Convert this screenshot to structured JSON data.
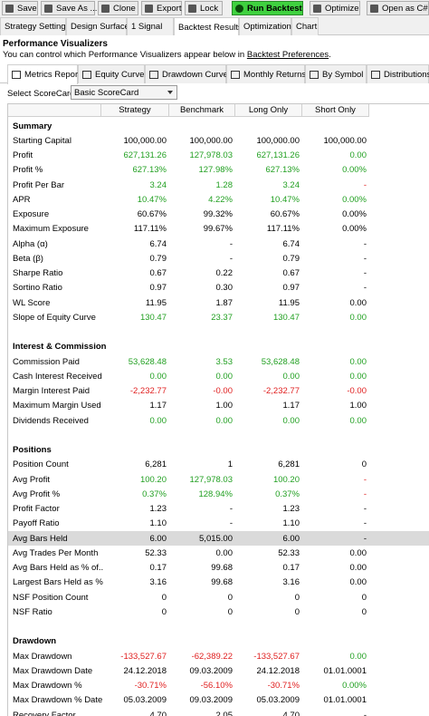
{
  "toolbar": [
    "Save",
    "Save As ...",
    "Clone",
    "Export",
    "Lock",
    "Run Backtest",
    "Optimize",
    "Open as C#"
  ],
  "tabs": [
    "Strategy Settings",
    "Design Surface",
    "1 Signal",
    "Backtest Results",
    "Optimization",
    "Chart"
  ],
  "active_tab": 3,
  "heading": "Performance Visualizers",
  "hint": {
    "text": "You can control which Performance Visualizers appear below in ",
    "link": "Backtest Preferences",
    "end": "."
  },
  "visualizer_tabs": [
    "Metrics Report",
    "Equity Curve",
    "Drawdown Curve",
    "Monthly Returns",
    "By Symbol",
    "Distributions"
  ],
  "active_visualizer": 0,
  "scorecard": {
    "label": "Select ScoreCard:",
    "value": "Basic ScoreCard"
  },
  "columns": [
    "Strategy",
    "Benchmark",
    "Long Only",
    "Short Only"
  ],
  "sections": [
    {
      "title": "Summary",
      "rows": [
        {
          "label": "Starting Capital",
          "values": [
            "100,000.00",
            "100,000.00",
            "100,000.00",
            "100,000.00"
          ]
        },
        {
          "label": "Profit",
          "values": [
            "627,131.26",
            "127,978.03",
            "627,131.26",
            "0.00"
          ],
          "colors": [
            "#22a022",
            "#22a022",
            "#22a022",
            "#22a022"
          ]
        },
        {
          "label": "Profit %",
          "values": [
            "627.13%",
            "127.98%",
            "627.13%",
            "0.00%"
          ],
          "colors": [
            "#22a022",
            "#22a022",
            "#22a022",
            "#22a022"
          ]
        },
        {
          "label": "Profit Per Bar",
          "values": [
            "3.24",
            "1.28",
            "3.24",
            "-"
          ],
          "colors": [
            "#22a022",
            "#22a022",
            "#22a022",
            "#e02020"
          ]
        },
        {
          "label": "APR",
          "values": [
            "10.47%",
            "4.22%",
            "10.47%",
            "0.00%"
          ],
          "colors": [
            "#22a022",
            "#22a022",
            "#22a022",
            "#22a022"
          ]
        },
        {
          "label": "Exposure",
          "values": [
            "60.67%",
            "99.32%",
            "60.67%",
            "0.00%"
          ]
        },
        {
          "label": "Maximum Exposure",
          "values": [
            "117.11%",
            "99.67%",
            "117.11%",
            "0.00%"
          ]
        },
        {
          "label": "Alpha (α)",
          "values": [
            "6.74",
            "-",
            "6.74",
            "-"
          ]
        },
        {
          "label": "Beta (β)",
          "values": [
            "0.79",
            "-",
            "0.79",
            "-"
          ]
        },
        {
          "label": "Sharpe Ratio",
          "values": [
            "0.67",
            "0.22",
            "0.67",
            "-"
          ]
        },
        {
          "label": "Sortino Ratio",
          "values": [
            "0.97",
            "0.30",
            "0.97",
            "-"
          ]
        },
        {
          "label": "WL Score",
          "values": [
            "11.95",
            "1.87",
            "11.95",
            "0.00"
          ]
        },
        {
          "label": "Slope of Equity Curve",
          "values": [
            "130.47",
            "23.37",
            "130.47",
            "0.00"
          ],
          "colors": [
            "#22a022",
            "#22a022",
            "#22a022",
            "#22a022"
          ]
        }
      ]
    },
    {
      "title": "Interest & Commission",
      "rows": [
        {
          "label": "Commission Paid",
          "values": [
            "53,628.48",
            "3.53",
            "53,628.48",
            "0.00"
          ],
          "colors": [
            "#22a022",
            "#22a022",
            "#22a022",
            "#22a022"
          ]
        },
        {
          "label": "Cash Interest Received",
          "values": [
            "0.00",
            "0.00",
            "0.00",
            "0.00"
          ],
          "colors": [
            "#22a022",
            "#22a022",
            "#22a022",
            "#22a022"
          ]
        },
        {
          "label": "Margin Interest Paid",
          "values": [
            "-2,232.77",
            "-0.00",
            "-2,232.77",
            "-0.00"
          ],
          "colors": [
            "#e02020",
            "#e02020",
            "#e02020",
            "#e02020"
          ]
        },
        {
          "label": "Maximum Margin Used",
          "values": [
            "1.17",
            "1.00",
            "1.17",
            "1.00"
          ]
        },
        {
          "label": "Dividends Received",
          "values": [
            "0.00",
            "0.00",
            "0.00",
            "0.00"
          ],
          "colors": [
            "#22a022",
            "#22a022",
            "#22a022",
            "#22a022"
          ]
        }
      ]
    },
    {
      "title": "Positions",
      "rows": [
        {
          "label": "Position Count",
          "values": [
            "6,281",
            "1",
            "6,281",
            "0"
          ]
        },
        {
          "label": "Avg Profit",
          "values": [
            "100.20",
            "127,978.03",
            "100.20",
            "-"
          ],
          "colors": [
            "#22a022",
            "#22a022",
            "#22a022",
            "#e02020"
          ]
        },
        {
          "label": "Avg Profit %",
          "values": [
            "0.37%",
            "128.94%",
            "0.37%",
            "-"
          ],
          "colors": [
            "#22a022",
            "#22a022",
            "#22a022",
            "#e02020"
          ]
        },
        {
          "label": "Profit Factor",
          "values": [
            "1.23",
            "-",
            "1.23",
            "-"
          ]
        },
        {
          "label": "Payoff Ratio",
          "values": [
            "1.10",
            "-",
            "1.10",
            "-"
          ]
        },
        {
          "label": "Avg Bars Held",
          "values": [
            "6.00",
            "5,015.00",
            "6.00",
            "-"
          ],
          "selected": true
        },
        {
          "label": "Avg Trades Per Month",
          "values": [
            "52.33",
            "0.00",
            "52.33",
            "0.00"
          ]
        },
        {
          "label": "Avg Bars Held as % of...",
          "values": [
            "0.17",
            "99.68",
            "0.17",
            "0.00"
          ]
        },
        {
          "label": "Largest Bars Held as %...",
          "values": [
            "3.16",
            "99.68",
            "3.16",
            "0.00"
          ]
        },
        {
          "label": "NSF Position Count",
          "values": [
            "0",
            "0",
            "0",
            "0"
          ]
        },
        {
          "label": "NSF Ratio",
          "values": [
            "0",
            "0",
            "0",
            "0"
          ]
        }
      ]
    },
    {
      "title": "Drawdown",
      "rows": [
        {
          "label": "Max Drawdown",
          "values": [
            "-133,527.67",
            "-62,389.22",
            "-133,527.67",
            "0.00"
          ],
          "colors": [
            "#e02020",
            "#e02020",
            "#e02020",
            "#22a022"
          ]
        },
        {
          "label": "Max Drawdown Date",
          "values": [
            "24.12.2018",
            "09.03.2009",
            "24.12.2018",
            "01.01.0001"
          ]
        },
        {
          "label": "Max Drawdown %",
          "values": [
            "-30.71%",
            "-56.10%",
            "-30.71%",
            "0.00%"
          ],
          "colors": [
            "#e02020",
            "#e02020",
            "#e02020",
            "#22a022"
          ]
        },
        {
          "label": "Max Drawdown % Date",
          "values": [
            "05.03.2009",
            "09.03.2009",
            "05.03.2009",
            "01.01.0001"
          ]
        },
        {
          "label": "Recovery Factor",
          "values": [
            "4.70",
            "2.05",
            "4.70",
            "-"
          ]
        }
      ]
    }
  ]
}
